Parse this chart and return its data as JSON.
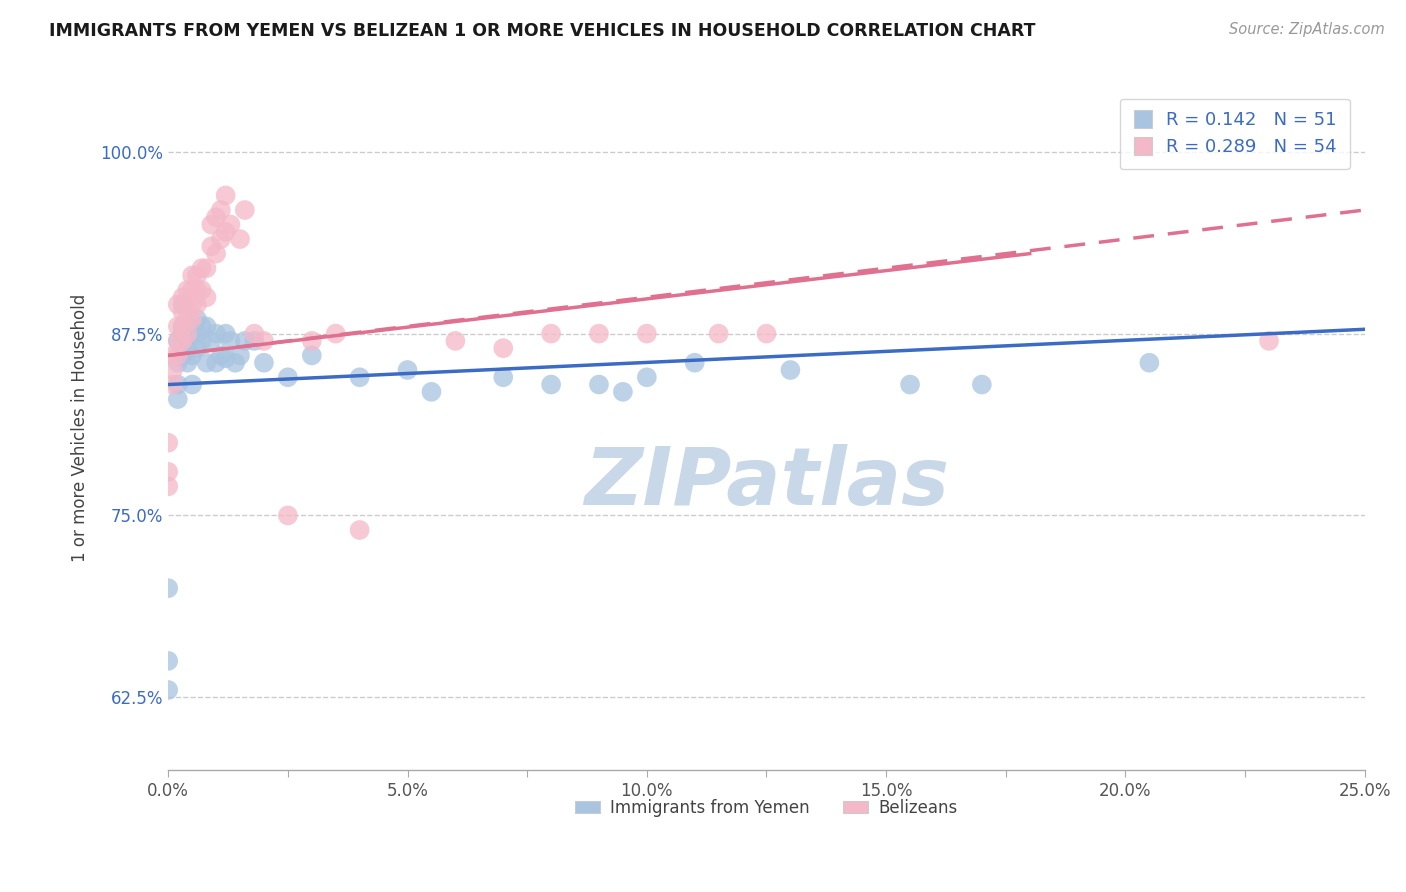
{
  "title": "IMMIGRANTS FROM YEMEN VS BELIZEAN 1 OR MORE VEHICLES IN HOUSEHOLD CORRELATION CHART",
  "source_text": "Source: ZipAtlas.com",
  "ylabel": "1 or more Vehicles in Household",
  "xlim": [
    0.0,
    0.25
  ],
  "ylim": [
    0.575,
    1.045
  ],
  "xtick_vals": [
    0.0,
    0.025,
    0.05,
    0.075,
    0.1,
    0.125,
    0.15,
    0.175,
    0.2,
    0.225,
    0.25
  ],
  "xtick_labels": [
    "0.0%",
    "",
    "5.0%",
    "",
    "10.0%",
    "",
    "15.0%",
    "",
    "20.0%",
    "",
    "25.0%"
  ],
  "ytick_vals": [
    0.625,
    0.75,
    0.875,
    1.0
  ],
  "ytick_labels": [
    "62.5%",
    "75.0%",
    "87.5%",
    "100.0%"
  ],
  "legend_blue_label": "Immigrants from Yemen",
  "legend_pink_label": "Belizeans",
  "R_blue": 0.142,
  "N_blue": 51,
  "R_pink": 0.289,
  "N_pink": 54,
  "blue_color": "#a8c4e0",
  "pink_color": "#f4b8c8",
  "blue_line_color": "#3b6bc4",
  "pink_line_color": "#e07090",
  "title_color": "#222222",
  "source_color": "#999999",
  "legend_r_color": "#3b6bc4",
  "grid_color": "#cccccc",
  "watermark_color": "#c8d8e8",
  "scatter_blue": [
    [
      0.0,
      0.63
    ],
    [
      0.0,
      0.65
    ],
    [
      0.0,
      0.7
    ],
    [
      0.002,
      0.83
    ],
    [
      0.002,
      0.84
    ],
    [
      0.002,
      0.855
    ],
    [
      0.002,
      0.87
    ],
    [
      0.003,
      0.86
    ],
    [
      0.003,
      0.875
    ],
    [
      0.003,
      0.88
    ],
    [
      0.003,
      0.895
    ],
    [
      0.004,
      0.855
    ],
    [
      0.004,
      0.865
    ],
    [
      0.004,
      0.88
    ],
    [
      0.005,
      0.84
    ],
    [
      0.005,
      0.86
    ],
    [
      0.005,
      0.875
    ],
    [
      0.006,
      0.865
    ],
    [
      0.006,
      0.875
    ],
    [
      0.006,
      0.885
    ],
    [
      0.007,
      0.87
    ],
    [
      0.007,
      0.88
    ],
    [
      0.008,
      0.855
    ],
    [
      0.008,
      0.88
    ],
    [
      0.009,
      0.87
    ],
    [
      0.01,
      0.855
    ],
    [
      0.01,
      0.875
    ],
    [
      0.011,
      0.86
    ],
    [
      0.012,
      0.858
    ],
    [
      0.012,
      0.875
    ],
    [
      0.013,
      0.87
    ],
    [
      0.014,
      0.855
    ],
    [
      0.015,
      0.86
    ],
    [
      0.016,
      0.87
    ],
    [
      0.018,
      0.87
    ],
    [
      0.02,
      0.855
    ],
    [
      0.025,
      0.845
    ],
    [
      0.03,
      0.86
    ],
    [
      0.04,
      0.845
    ],
    [
      0.05,
      0.85
    ],
    [
      0.055,
      0.835
    ],
    [
      0.07,
      0.845
    ],
    [
      0.08,
      0.84
    ],
    [
      0.09,
      0.84
    ],
    [
      0.095,
      0.835
    ],
    [
      0.1,
      0.845
    ],
    [
      0.11,
      0.855
    ],
    [
      0.13,
      0.85
    ],
    [
      0.155,
      0.84
    ],
    [
      0.17,
      0.84
    ],
    [
      0.205,
      0.855
    ]
  ],
  "scatter_pink": [
    [
      0.0,
      0.77
    ],
    [
      0.0,
      0.78
    ],
    [
      0.0,
      0.8
    ],
    [
      0.001,
      0.84
    ],
    [
      0.001,
      0.85
    ],
    [
      0.001,
      0.86
    ],
    [
      0.002,
      0.86
    ],
    [
      0.002,
      0.87
    ],
    [
      0.002,
      0.88
    ],
    [
      0.002,
      0.895
    ],
    [
      0.003,
      0.87
    ],
    [
      0.003,
      0.88
    ],
    [
      0.003,
      0.89
    ],
    [
      0.003,
      0.9
    ],
    [
      0.004,
      0.875
    ],
    [
      0.004,
      0.885
    ],
    [
      0.004,
      0.895
    ],
    [
      0.004,
      0.905
    ],
    [
      0.005,
      0.885
    ],
    [
      0.005,
      0.895
    ],
    [
      0.005,
      0.905
    ],
    [
      0.005,
      0.915
    ],
    [
      0.006,
      0.895
    ],
    [
      0.006,
      0.905
    ],
    [
      0.006,
      0.915
    ],
    [
      0.007,
      0.905
    ],
    [
      0.007,
      0.92
    ],
    [
      0.008,
      0.9
    ],
    [
      0.008,
      0.92
    ],
    [
      0.009,
      0.935
    ],
    [
      0.009,
      0.95
    ],
    [
      0.01,
      0.93
    ],
    [
      0.01,
      0.955
    ],
    [
      0.011,
      0.94
    ],
    [
      0.011,
      0.96
    ],
    [
      0.012,
      0.945
    ],
    [
      0.012,
      0.97
    ],
    [
      0.013,
      0.95
    ],
    [
      0.015,
      0.94
    ],
    [
      0.016,
      0.96
    ],
    [
      0.018,
      0.875
    ],
    [
      0.02,
      0.87
    ],
    [
      0.025,
      0.75
    ],
    [
      0.03,
      0.87
    ],
    [
      0.035,
      0.875
    ],
    [
      0.04,
      0.74
    ],
    [
      0.06,
      0.87
    ],
    [
      0.07,
      0.865
    ],
    [
      0.08,
      0.875
    ],
    [
      0.09,
      0.875
    ],
    [
      0.1,
      0.875
    ],
    [
      0.115,
      0.875
    ],
    [
      0.125,
      0.875
    ],
    [
      0.23,
      0.87
    ]
  ],
  "blue_trendline": [
    0.0,
    0.25,
    0.84,
    0.878
  ],
  "pink_trendline": [
    0.0,
    0.25,
    0.86,
    0.96
  ]
}
